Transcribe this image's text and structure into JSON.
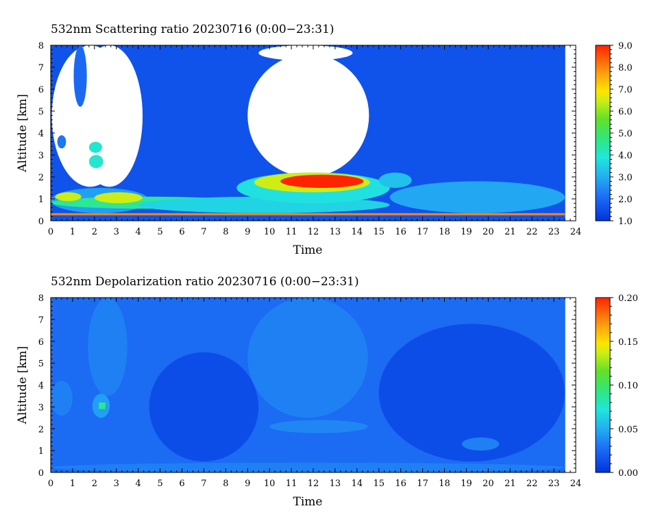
{
  "chart_data": [
    {
      "type": "heatmap",
      "title": "532nm Scattering ratio  20230716 (0:00−23:31)",
      "xlabel": "Time",
      "ylabel": "Altitude [km]",
      "xlim": [
        0,
        24
      ],
      "ylim": [
        0,
        8
      ],
      "x_ticks": [
        "0",
        "1",
        "2",
        "3",
        "4",
        "5",
        "6",
        "7",
        "8",
        "9",
        "10",
        "11",
        "12",
        "13",
        "14",
        "15",
        "16",
        "17",
        "18",
        "19",
        "20",
        "21",
        "22",
        "23",
        "24"
      ],
      "y_ticks": [
        "0",
        "1",
        "2",
        "3",
        "4",
        "5",
        "6",
        "7",
        "8"
      ],
      "data_end_time": 23.52,
      "colorbar": {
        "range": [
          1.0,
          9.0
        ],
        "tick_labels": [
          "1.0",
          "2.0",
          "3.0",
          "4.0",
          "5.0",
          "6.0",
          "7.0",
          "8.0",
          "9.0"
        ]
      },
      "background_value": 1.6,
      "regions": [
        {
          "kind": "no_data",
          "x": [
            0.05,
            3.55
          ],
          "y": [
            1.55,
            8.0
          ]
        },
        {
          "kind": "no_data",
          "x": [
            1.15,
            4.2
          ],
          "y": [
            1.55,
            8.0
          ]
        },
        {
          "kind": "no_data",
          "x": [
            9.0,
            14.55
          ],
          "y": [
            2.0,
            7.6
          ]
        },
        {
          "kind": "no_data",
          "x": [
            9.5,
            13.8
          ],
          "y": [
            7.3,
            8.0
          ]
        },
        {
          "kind": "value",
          "value": 2.0,
          "x": [
            1.05,
            1.65
          ],
          "y": [
            5.2,
            8.0
          ]
        },
        {
          "kind": "value",
          "value": 2.2,
          "x": [
            0.3,
            0.7
          ],
          "y": [
            3.3,
            3.9
          ]
        },
        {
          "kind": "value",
          "value": 4.0,
          "x": [
            1.75,
            2.35
          ],
          "y": [
            3.1,
            3.6
          ]
        },
        {
          "kind": "value",
          "value": 4.0,
          "x": [
            1.75,
            2.4
          ],
          "y": [
            2.4,
            3.0
          ]
        },
        {
          "kind": "value",
          "value": 2.8,
          "x": [
            0.0,
            4.5
          ],
          "y": [
            0.35,
            1.5
          ]
        },
        {
          "kind": "value",
          "value": 4.5,
          "x": [
            0.0,
            9.0
          ],
          "y": [
            0.55,
            1.1
          ]
        },
        {
          "kind": "value",
          "value": 6.5,
          "x": [
            0.2,
            1.4
          ],
          "y": [
            0.9,
            1.3
          ]
        },
        {
          "kind": "value",
          "value": 6.5,
          "x": [
            2.0,
            4.2
          ],
          "y": [
            0.8,
            1.3
          ]
        },
        {
          "kind": "value",
          "value": 3.6,
          "x": [
            4.0,
            15.5
          ],
          "y": [
            0.35,
            1.1
          ]
        },
        {
          "kind": "value",
          "value": 3.8,
          "x": [
            8.5,
            15.5
          ],
          "y": [
            0.8,
            2.2
          ]
        },
        {
          "kind": "value",
          "value": 6.5,
          "x": [
            9.3,
            14.6
          ],
          "y": [
            1.3,
            2.2
          ]
        },
        {
          "kind": "value",
          "value": 9.0,
          "x": [
            10.5,
            14.3
          ],
          "y": [
            1.5,
            2.1
          ]
        },
        {
          "kind": "value",
          "value": 3.3,
          "x": [
            15.0,
            16.5
          ],
          "y": [
            1.5,
            2.2
          ]
        },
        {
          "kind": "value",
          "value": 2.9,
          "x": [
            15.5,
            23.5
          ],
          "y": [
            0.35,
            1.8
          ]
        },
        {
          "kind": "value",
          "value": 8.0,
          "x": [
            0.0,
            23.5
          ],
          "y": [
            0.25,
            0.35
          ]
        }
      ]
    },
    {
      "type": "heatmap",
      "title": "532nm Depolarization ratio  20230716 (0:00−23:31)",
      "xlabel": "Time",
      "ylabel": "Altitude [km]",
      "xlim": [
        0,
        24
      ],
      "ylim": [
        0,
        8
      ],
      "x_ticks": [
        "0",
        "1",
        "2",
        "3",
        "4",
        "5",
        "6",
        "7",
        "8",
        "9",
        "10",
        "11",
        "12",
        "13",
        "14",
        "15",
        "16",
        "17",
        "18",
        "19",
        "20",
        "21",
        "22",
        "23",
        "24"
      ],
      "y_ticks": [
        "0",
        "1",
        "2",
        "3",
        "4",
        "5",
        "6",
        "7",
        "8"
      ],
      "data_end_time": 23.52,
      "colorbar": {
        "range": [
          0.0,
          0.2
        ],
        "tick_labels": [
          "0.00",
          "0.05",
          "0.10",
          "0.15",
          "0.20"
        ]
      },
      "background_value": 0.026,
      "regions": [
        {
          "kind": "value",
          "value": 0.012,
          "x": [
            4.5,
            9.5
          ],
          "y": [
            0.5,
            5.5
          ]
        },
        {
          "kind": "value",
          "value": 0.012,
          "x": [
            15.0,
            23.5
          ],
          "y": [
            0.5,
            6.8
          ]
        },
        {
          "kind": "value",
          "value": 0.034,
          "x": [
            1.7,
            3.5
          ],
          "y": [
            3.5,
            8.0
          ]
        },
        {
          "kind": "value",
          "value": 0.034,
          "x": [
            9.0,
            14.5
          ],
          "y": [
            2.5,
            8.0
          ]
        },
        {
          "kind": "value",
          "value": 0.034,
          "x": [
            0.0,
            1.0
          ],
          "y": [
            2.6,
            4.2
          ]
        },
        {
          "kind": "value",
          "value": 0.045,
          "x": [
            1.9,
            2.7
          ],
          "y": [
            2.5,
            3.6
          ]
        },
        {
          "kind": "value",
          "value": 0.09,
          "x": [
            2.2,
            2.5
          ],
          "y": [
            2.9,
            3.2
          ]
        },
        {
          "kind": "value",
          "value": 0.036,
          "x": [
            10.0,
            14.5
          ],
          "y": [
            1.8,
            2.4
          ]
        },
        {
          "kind": "value",
          "value": 0.034,
          "x": [
            0.0,
            23.5
          ],
          "y": [
            0.0,
            0.45
          ]
        },
        {
          "kind": "value",
          "value": 0.034,
          "x": [
            18.8,
            20.5
          ],
          "y": [
            1.0,
            1.6
          ]
        }
      ]
    }
  ]
}
